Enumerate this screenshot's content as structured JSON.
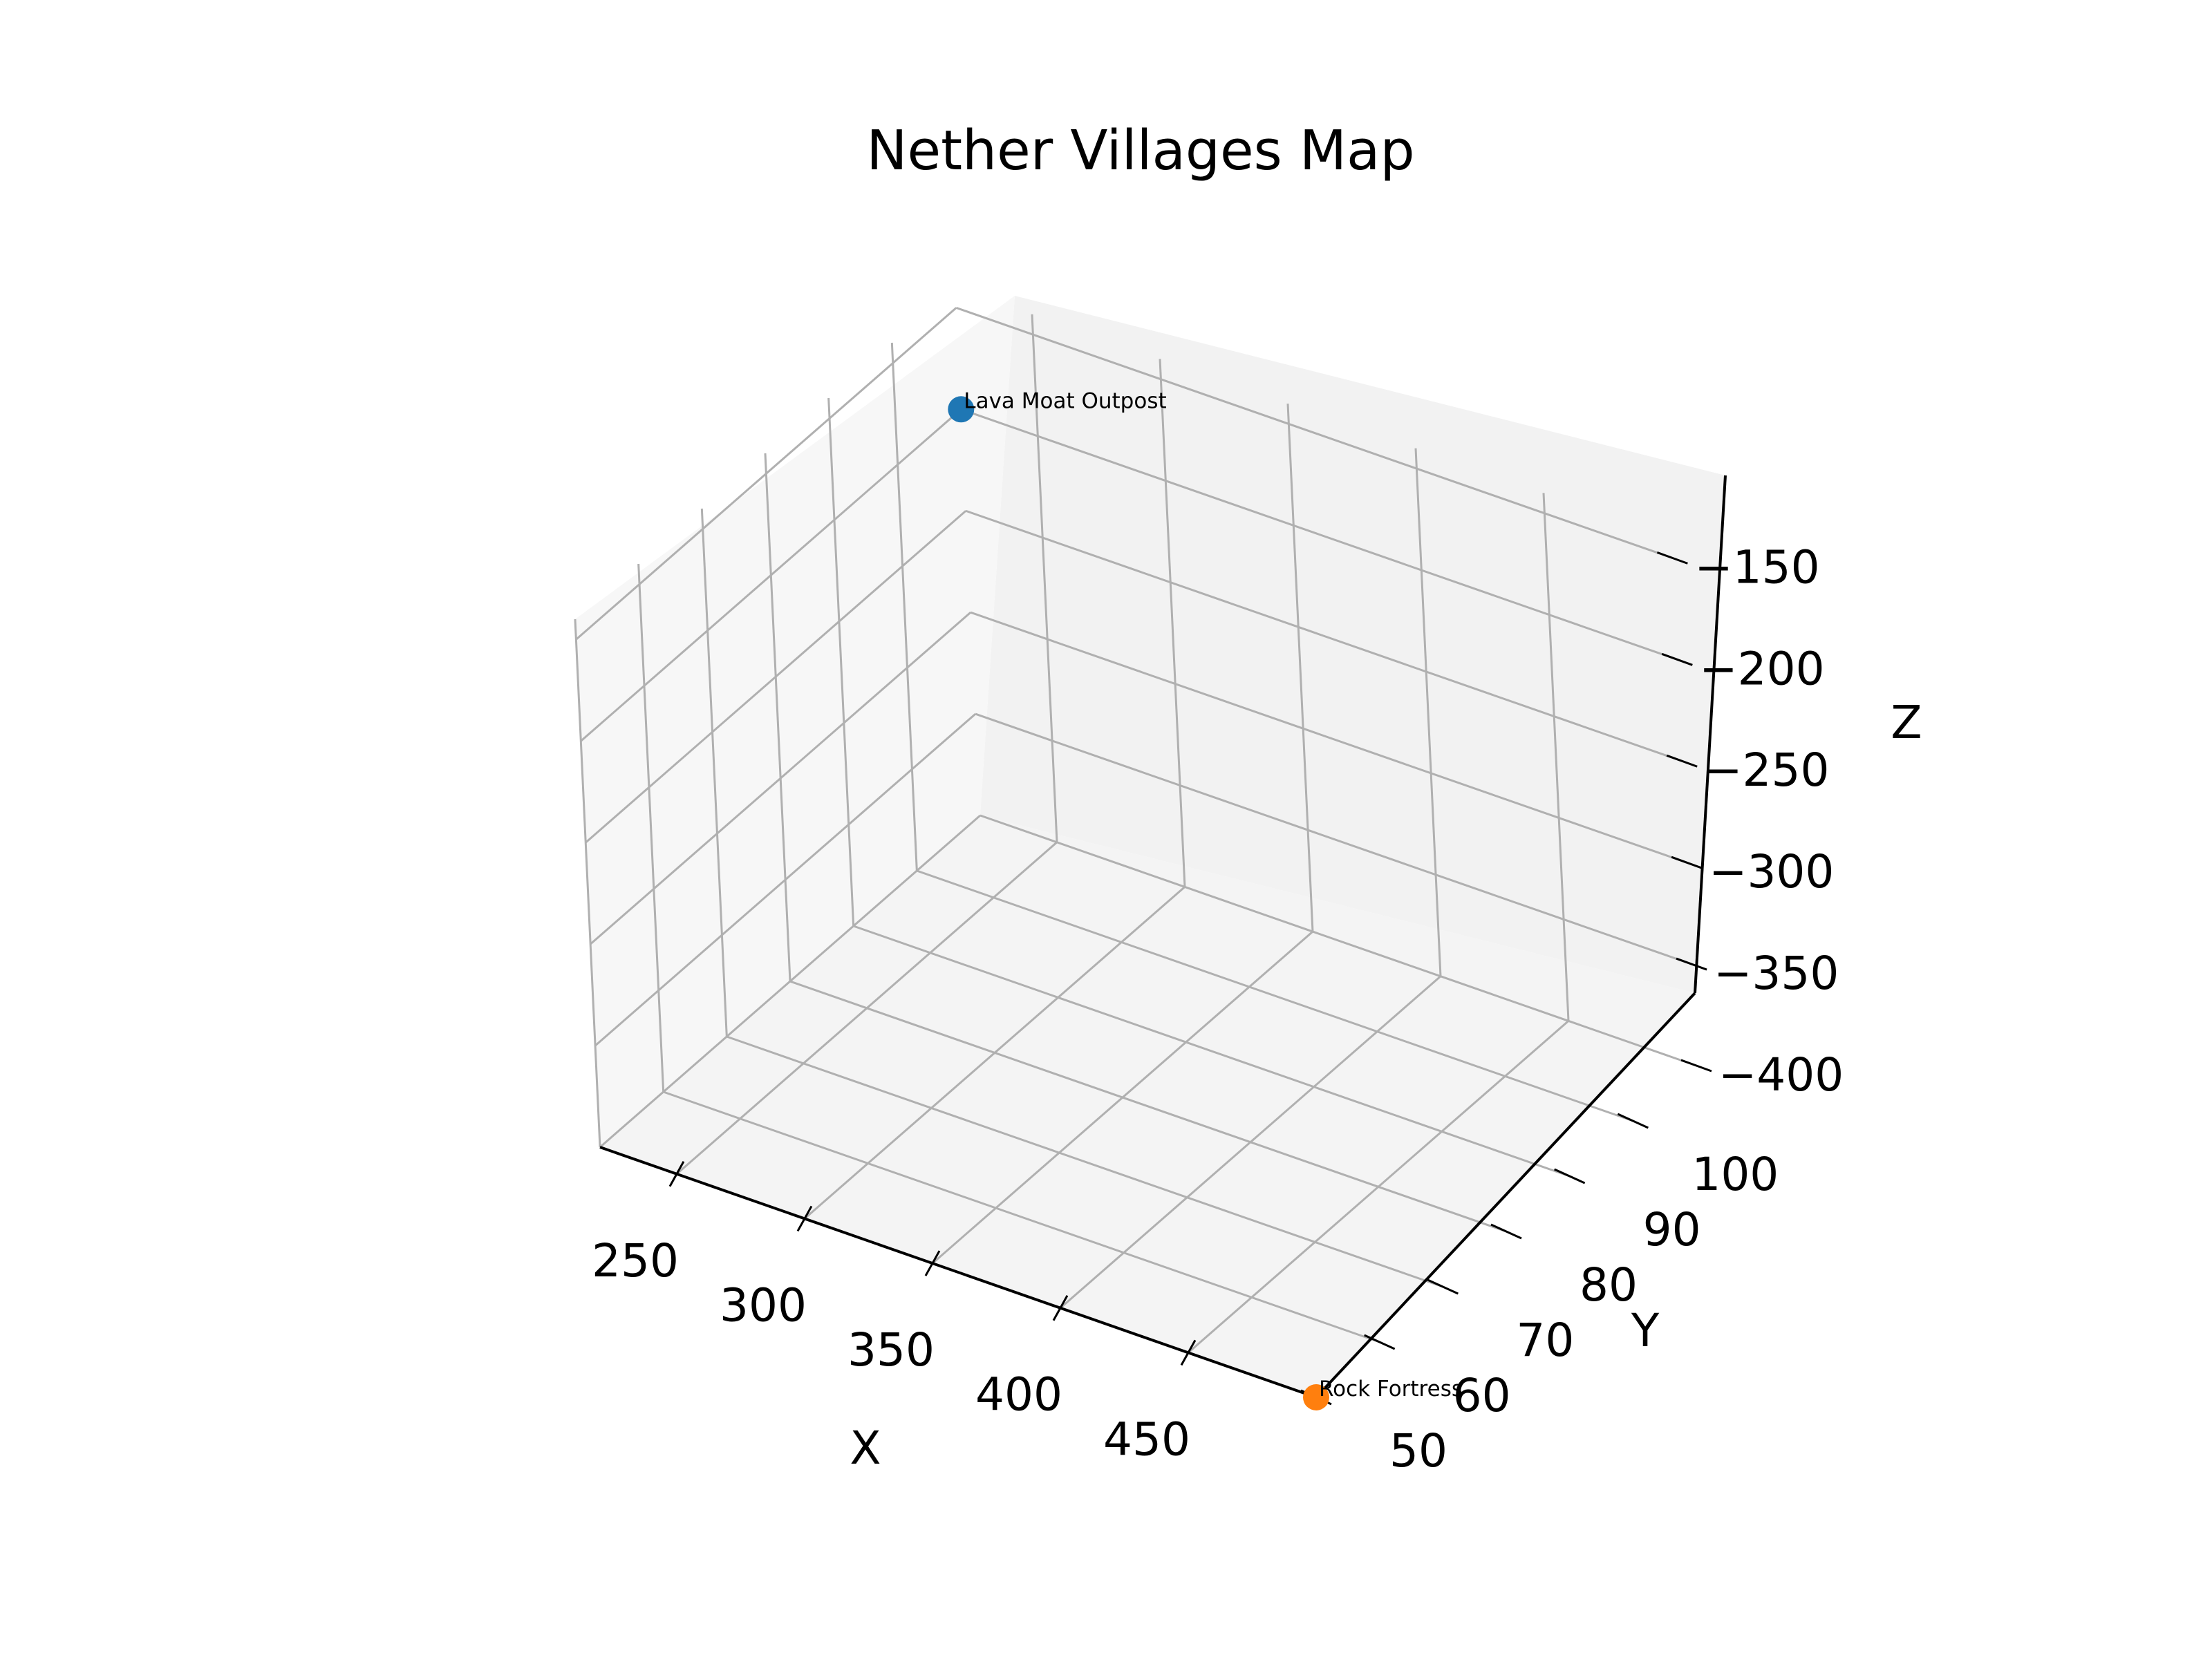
{
  "chart_data": {
    "type": "scatter",
    "title": "Nether Villages Map",
    "xlabel": "X",
    "ylabel": "Y",
    "zlabel": "Z",
    "x_ticks": [
      "250",
      "300",
      "350",
      "400",
      "450"
    ],
    "y_ticks": [
      "50",
      "60",
      "70",
      "80",
      "90",
      "100"
    ],
    "z_ticks": [
      "−400",
      "−350",
      "−300",
      "−250",
      "−200",
      "−150"
    ],
    "grid": true,
    "points": [
      {
        "name": "Lava Moat Outpost",
        "x": 220,
        "y": 110,
        "z": -200,
        "color": "#1f77b4"
      },
      {
        "name": "Rock Fortress",
        "x": 500,
        "y": 50,
        "z": -400,
        "color": "#ff7f0e"
      }
    ]
  }
}
